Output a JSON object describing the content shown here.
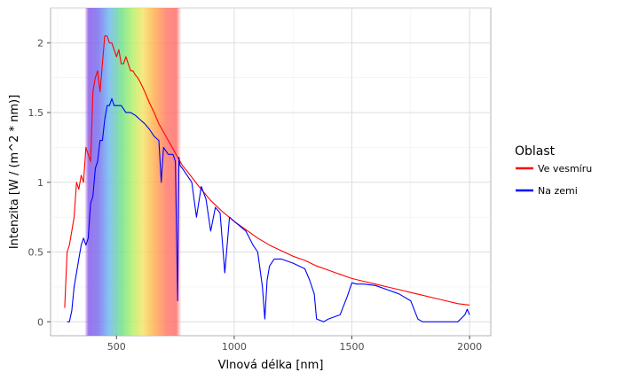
{
  "chart_data": {
    "type": "line",
    "xlabel": "Vlnová délka [nm]",
    "ylabel": "Intenzita [W / (m^2 * nm)]",
    "xlim": [
      220,
      2090
    ],
    "ylim": [
      -0.1,
      2.25
    ],
    "x_ticks": [
      500,
      1000,
      1500,
      2000
    ],
    "y_ticks": [
      0,
      0.5,
      1,
      1.5,
      2
    ],
    "x_tick_labels": [
      "500",
      "1000",
      "1500",
      "2000"
    ],
    "y_tick_labels": [
      "0",
      "0.5",
      "1",
      "1.5",
      "2"
    ],
    "grid": true,
    "visible_spectrum_band": [
      380,
      760
    ],
    "legend": {
      "title": "Oblast",
      "position": "right"
    },
    "series": [
      {
        "name": "Ve vesmíru",
        "color": "#ff0000",
        "x": [
          280,
          290,
          300,
          310,
          320,
          330,
          340,
          350,
          360,
          370,
          380,
          390,
          400,
          410,
          420,
          430,
          440,
          450,
          460,
          470,
          480,
          490,
          500,
          510,
          520,
          530,
          540,
          550,
          560,
          570,
          580,
          590,
          600,
          620,
          640,
          660,
          680,
          700,
          720,
          740,
          760,
          780,
          800,
          850,
          900,
          950,
          1000,
          1050,
          1100,
          1150,
          1200,
          1250,
          1300,
          1350,
          1400,
          1450,
          1500,
          1550,
          1600,
          1650,
          1700,
          1750,
          1800,
          1850,
          1900,
          1950,
          2000
        ],
        "y": [
          0.1,
          0.5,
          0.55,
          0.65,
          0.75,
          1.0,
          0.95,
          1.05,
          1.0,
          1.25,
          1.2,
          1.15,
          1.65,
          1.75,
          1.8,
          1.65,
          1.85,
          2.05,
          2.05,
          2.0,
          2.0,
          1.95,
          1.9,
          1.95,
          1.85,
          1.85,
          1.9,
          1.85,
          1.8,
          1.8,
          1.77,
          1.75,
          1.72,
          1.65,
          1.57,
          1.5,
          1.42,
          1.36,
          1.3,
          1.24,
          1.18,
          1.12,
          1.08,
          0.97,
          0.87,
          0.79,
          0.72,
          0.66,
          0.6,
          0.55,
          0.51,
          0.47,
          0.44,
          0.4,
          0.37,
          0.34,
          0.31,
          0.29,
          0.27,
          0.25,
          0.23,
          0.21,
          0.19,
          0.17,
          0.15,
          0.13,
          0.12
        ]
      },
      {
        "name": "Na zemi",
        "color": "#0000ff",
        "x": [
          290,
          300,
          310,
          320,
          330,
          340,
          350,
          360,
          370,
          380,
          390,
          400,
          410,
          420,
          430,
          440,
          450,
          460,
          470,
          480,
          490,
          500,
          520,
          540,
          560,
          580,
          600,
          620,
          640,
          660,
          680,
          690,
          700,
          720,
          740,
          750,
          760,
          765,
          770,
          780,
          800,
          820,
          840,
          860,
          880,
          900,
          920,
          940,
          960,
          980,
          1000,
          1050,
          1080,
          1100,
          1120,
          1130,
          1140,
          1150,
          1170,
          1200,
          1250,
          1300,
          1320,
          1340,
          1350,
          1380,
          1400,
          1450,
          1480,
          1500,
          1520,
          1550,
          1600,
          1650,
          1700,
          1750,
          1780,
          1800,
          1850,
          1900,
          1950,
          1980,
          1990,
          2000
        ],
        "y": [
          0.0,
          0.0,
          0.08,
          0.25,
          0.35,
          0.45,
          0.55,
          0.6,
          0.55,
          0.6,
          0.85,
          0.9,
          1.1,
          1.15,
          1.3,
          1.3,
          1.45,
          1.55,
          1.55,
          1.6,
          1.55,
          1.55,
          1.55,
          1.5,
          1.5,
          1.48,
          1.45,
          1.42,
          1.38,
          1.33,
          1.3,
          1.0,
          1.25,
          1.2,
          1.2,
          1.15,
          0.15,
          1.18,
          1.12,
          1.1,
          1.05,
          1.0,
          0.75,
          0.97,
          0.88,
          0.65,
          0.82,
          0.78,
          0.35,
          0.75,
          0.72,
          0.65,
          0.55,
          0.5,
          0.25,
          0.02,
          0.3,
          0.4,
          0.45,
          0.45,
          0.42,
          0.38,
          0.3,
          0.2,
          0.02,
          0.0,
          0.02,
          0.05,
          0.18,
          0.28,
          0.27,
          0.27,
          0.26,
          0.23,
          0.2,
          0.15,
          0.02,
          0.0,
          0.0,
          0.0,
          0.0,
          0.05,
          0.09,
          0.05
        ]
      }
    ]
  }
}
